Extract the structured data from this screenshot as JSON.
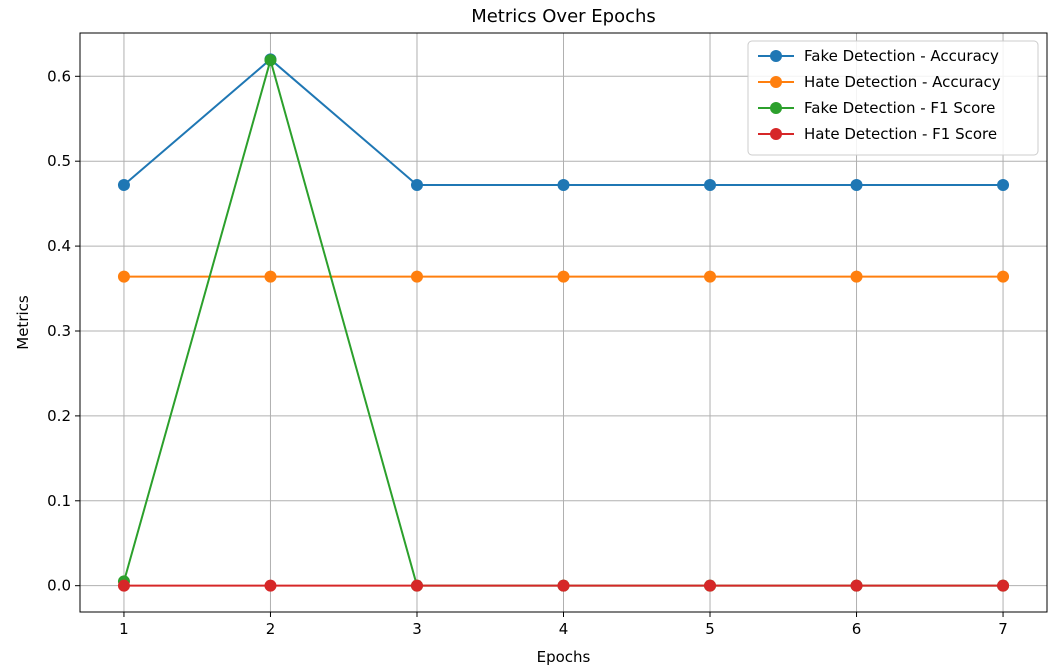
{
  "chart_data": {
    "type": "line",
    "title": "Metrics Over Epochs",
    "xlabel": "Epochs",
    "ylabel": "Metrics",
    "x": [
      1,
      2,
      3,
      4,
      5,
      6,
      7
    ],
    "xlim": [
      0.7,
      7.3
    ],
    "ylim": [
      -0.031,
      0.651
    ],
    "xticks": [
      1,
      2,
      3,
      4,
      5,
      6,
      7
    ],
    "yticks": [
      0.0,
      0.1,
      0.2,
      0.3,
      0.4,
      0.5,
      0.6
    ],
    "ytick_labels": [
      "0.0",
      "0.1",
      "0.2",
      "0.3",
      "0.4",
      "0.5",
      "0.6"
    ],
    "grid": true,
    "legend_position": "top-right",
    "series": [
      {
        "name": "Fake Detection - Accuracy",
        "color": "#1f77b4",
        "values": [
          0.472,
          0.62,
          0.472,
          0.472,
          0.472,
          0.472,
          0.472
        ]
      },
      {
        "name": "Hate Detection - Accuracy",
        "color": "#ff7f0e",
        "values": [
          0.364,
          0.364,
          0.364,
          0.364,
          0.364,
          0.364,
          0.364
        ]
      },
      {
        "name": "Fake Detection - F1 Score",
        "color": "#2ca02c",
        "values": [
          0.005,
          0.619,
          0.0,
          0.0,
          0.0,
          0.0,
          0.0
        ]
      },
      {
        "name": "Hate Detection - F1 Score",
        "color": "#d62728",
        "values": [
          0.0,
          0.0,
          0.0,
          0.0,
          0.0,
          0.0,
          0.0
        ]
      }
    ]
  }
}
